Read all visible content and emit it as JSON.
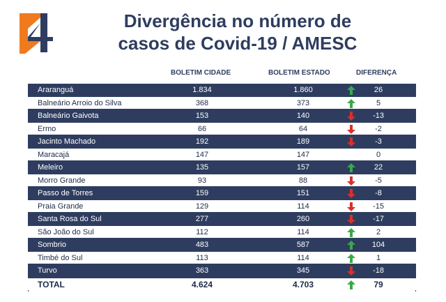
{
  "title_line1": "Divergência no número de",
  "title_line2": "casos de Covid-19 / AMESC",
  "headers": {
    "col1": "BOLETIM CIDADE",
    "col2": "BOLETIM ESTADO",
    "col3": "DIFERENÇA"
  },
  "colors": {
    "navy": "#2e3d5f",
    "logo_orange": "#f07a1e",
    "up_green": "#3aa84a",
    "down_red": "#d6312c"
  },
  "rows": [
    {
      "name": "Araranguá",
      "cidade": "1.834",
      "estado": "1.860",
      "diff": "26",
      "trend": "up"
    },
    {
      "name": "Balneário Arroio do Silva",
      "cidade": "368",
      "estado": "373",
      "diff": "5",
      "trend": "up"
    },
    {
      "name": "Balneário Gaivota",
      "cidade": "153",
      "estado": "140",
      "diff": "-13",
      "trend": "down"
    },
    {
      "name": "Ermo",
      "cidade": "66",
      "estado": "64",
      "diff": "-2",
      "trend": "down"
    },
    {
      "name": "Jacinto Machado",
      "cidade": "192",
      "estado": "189",
      "diff": "-3",
      "trend": "down"
    },
    {
      "name": "Maracajá",
      "cidade": "147",
      "estado": "147",
      "diff": "0",
      "trend": "none"
    },
    {
      "name": "Meleiro",
      "cidade": "135",
      "estado": "157",
      "diff": "22",
      "trend": "up"
    },
    {
      "name": "Morro Grande",
      "cidade": "93",
      "estado": "88",
      "diff": "-5",
      "trend": "down"
    },
    {
      "name": "Passo de Torres",
      "cidade": "159",
      "estado": "151",
      "diff": "-8",
      "trend": "down"
    },
    {
      "name": "Praia Grande",
      "cidade": "129",
      "estado": "114",
      "diff": "-15",
      "trend": "down"
    },
    {
      "name": "Santa Rosa do Sul",
      "cidade": "277",
      "estado": "260",
      "diff": "-17",
      "trend": "down"
    },
    {
      "name": "São João do Sul",
      "cidade": "112",
      "estado": "114",
      "diff": "2",
      "trend": "up"
    },
    {
      "name": "Sombrio",
      "cidade": "483",
      "estado": "587",
      "diff": "104",
      "trend": "up"
    },
    {
      "name": "Timbé do Sul",
      "cidade": "113",
      "estado": "114",
      "diff": "1",
      "trend": "up"
    },
    {
      "name": "Turvo",
      "cidade": "363",
      "estado": "345",
      "diff": "-18",
      "trend": "down"
    }
  ],
  "total": {
    "name": "TOTAL",
    "cidade": "4.624",
    "estado": "4.703",
    "diff": "79",
    "trend": "up"
  }
}
